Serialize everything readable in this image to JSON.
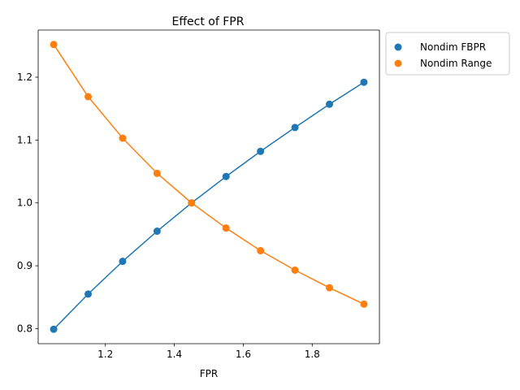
{
  "chart_data": {
    "type": "line",
    "title": "Effect of FPR",
    "xlabel": "FPR",
    "ylabel": "",
    "x": [
      1.05,
      1.15,
      1.25,
      1.35,
      1.45,
      1.55,
      1.65,
      1.75,
      1.85,
      1.95
    ],
    "series": [
      {
        "name": "Nondim FBPR",
        "color": "#1f77b4",
        "values": [
          0.799,
          0.855,
          0.907,
          0.955,
          1.0,
          1.042,
          1.082,
          1.12,
          1.157,
          1.192
        ]
      },
      {
        "name": "Nondim Range",
        "color": "#ff7f0e",
        "values": [
          1.252,
          1.169,
          1.103,
          1.047,
          1.0,
          0.96,
          0.924,
          0.893,
          0.865,
          0.839
        ]
      }
    ],
    "xlim": [
      1.005,
      1.995
    ],
    "ylim": [
      0.776,
      1.275
    ],
    "xticks": [
      "1.2",
      "1.4",
      "1.6",
      "1.8"
    ],
    "yticks": [
      "0.8",
      "0.9",
      "1.0",
      "1.1",
      "1.2"
    ],
    "grid": false,
    "legend_position": "outside-top-right",
    "markers": "circle"
  }
}
